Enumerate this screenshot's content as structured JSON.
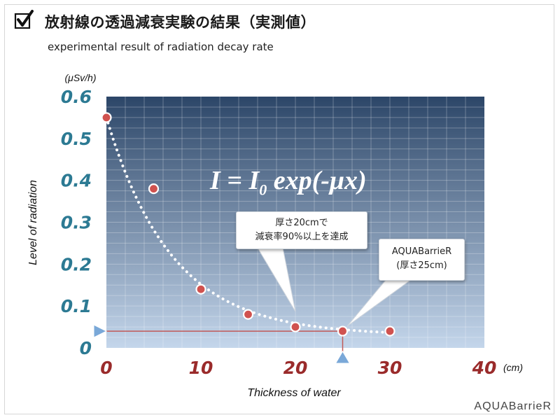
{
  "title": "放射線の透過減衰実験の結果（実測値）",
  "subtitle": "experimental result of radiation decay rate",
  "logo": "AQUABarrieR",
  "formula": {
    "prefix": "I = I",
    "subscript": "0",
    "suffix": " exp(-μx)"
  },
  "annotations": [
    {
      "lines": [
        "厚さ20cmで",
        "減衰率90%以上を達成"
      ]
    },
    {
      "lines": [
        "AQUABarrieR",
        "(厚さ25cm)"
      ]
    }
  ],
  "colors": {
    "plot_top": "#2c4668",
    "plot_bottom": "#c4d6eb",
    "y_ticks": "#2c7a93",
    "x_ticks": "#9a2b2b",
    "point": "#d0524f",
    "marker": "#7aa8d8",
    "hline": "#c05a58"
  },
  "chart_data": {
    "type": "scatter",
    "xlabel": "Thickness of water",
    "ylabel": "Level of radiation",
    "y_unit": "(μSv/h)",
    "x_unit": "(cm)",
    "x_ticks": [
      "0",
      "10",
      "20",
      "30",
      "40"
    ],
    "y_ticks": [
      "0",
      "0.1",
      "0.2",
      "0.3",
      "0.4",
      "0.5",
      "0.6"
    ],
    "xlim": [
      0,
      40
    ],
    "ylim": [
      0,
      0.6
    ],
    "grid": true,
    "points": {
      "x": [
        0,
        5,
        10,
        15,
        20,
        25,
        30
      ],
      "y": [
        0.55,
        0.38,
        0.14,
        0.08,
        0.05,
        0.04,
        0.04
      ]
    },
    "fit_curve": {
      "style": "dotted",
      "form": "exponential decay",
      "x_range": [
        0,
        30
      ]
    },
    "reference": {
      "x": 25,
      "y": 0.04
    }
  }
}
